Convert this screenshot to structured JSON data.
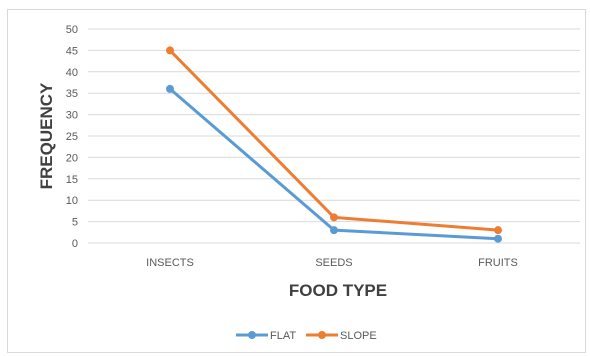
{
  "chart_data": {
    "type": "line",
    "categories": [
      "INSECTS",
      "SEEDS",
      "FRUITS"
    ],
    "series": [
      {
        "name": "FLAT",
        "values": [
          36,
          3,
          1
        ],
        "color": "#5b9bd5"
      },
      {
        "name": "SLOPE",
        "values": [
          45,
          6,
          3
        ],
        "color": "#ed7d31"
      }
    ],
    "xlabel": "FOOD TYPE",
    "ylabel": "FREQUENCY",
    "ylim": [
      0,
      50
    ],
    "yticks": [
      0,
      5,
      10,
      15,
      20,
      25,
      30,
      35,
      40,
      45,
      50
    ],
    "grid": true,
    "legend_position": "bottom"
  }
}
